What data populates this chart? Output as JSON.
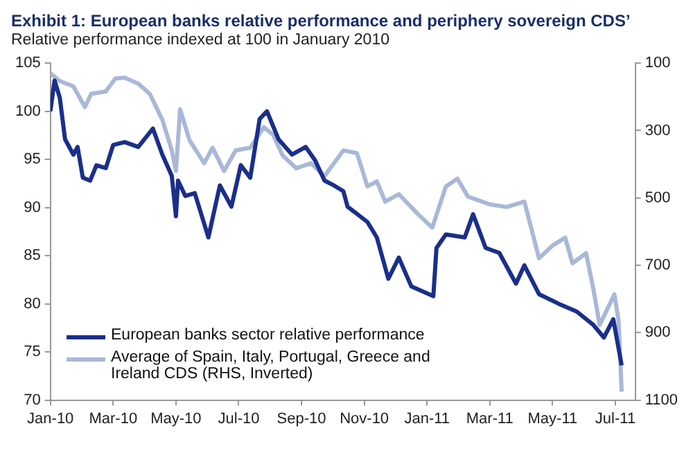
{
  "chart_data": {
    "type": "line",
    "title": "Exhibit 1: European banks relative performance and periphery sovereign CDS’",
    "subtitle": "Relative performance indexed at 100 in January 2010",
    "xlim": [
      "2010-01-01",
      "2011-07-20"
    ],
    "xticks": [
      {
        "value": "2010-01",
        "label": "Jan-10"
      },
      {
        "value": "2010-03",
        "label": "Mar-10"
      },
      {
        "value": "2010-05",
        "label": "May-10"
      },
      {
        "value": "2010-07",
        "label": "Jul-10"
      },
      {
        "value": "2010-09",
        "label": "Sep-10"
      },
      {
        "value": "2010-11",
        "label": "Nov-10"
      },
      {
        "value": "2011-01",
        "label": "Jan-11"
      },
      {
        "value": "2011-03",
        "label": "Mar-11"
      },
      {
        "value": "2011-05",
        "label": "May-11"
      },
      {
        "value": "2011-07",
        "label": "Jul-11"
      }
    ],
    "ylim": [
      70,
      105
    ],
    "yticks": [
      70,
      75,
      80,
      85,
      90,
      95,
      100,
      105
    ],
    "y2lim": [
      1100,
      100
    ],
    "y2ticks": [
      100,
      300,
      500,
      700,
      900,
      1100
    ],
    "legend": "bottom left",
    "marker": "none",
    "line_style": "solid",
    "series": [
      {
        "name": "European banks sector relative performance",
        "color": "#1a2f8a",
        "x": [
          "2010-01-01",
          "2010-01-05",
          "2010-01-10",
          "2010-01-15",
          "2010-01-23",
          "2010-01-27",
          "2010-02-02",
          "2010-02-09",
          "2010-02-15",
          "2010-02-24",
          "2010-03-01",
          "2010-03-12",
          "2010-03-25",
          "2010-04-09",
          "2010-04-18",
          "2010-04-27",
          "2010-05-01",
          "2010-05-03",
          "2010-05-10",
          "2010-05-19",
          "2010-06-02",
          "2010-06-13",
          "2010-06-24",
          "2010-07-03",
          "2010-07-12",
          "2010-07-21",
          "2010-07-28",
          "2010-08-09",
          "2010-08-22",
          "2010-09-05",
          "2010-09-14",
          "2010-09-23",
          "2010-10-02",
          "2010-10-11",
          "2010-10-15",
          "2010-11-04",
          "2010-11-13",
          "2010-11-24",
          "2010-12-04",
          "2010-12-16",
          "2011-01-07",
          "2011-01-10",
          "2011-01-19",
          "2011-02-07",
          "2011-02-15",
          "2011-02-27",
          "2011-03-10",
          "2011-03-26",
          "2011-04-04",
          "2011-04-18",
          "2011-05-07",
          "2011-05-24",
          "2011-06-10",
          "2011-06-20",
          "2011-06-29",
          "2011-07-07"
        ],
        "values": [
          100,
          103.2,
          101.4,
          97.1,
          95.5,
          96.3,
          93.1,
          92.8,
          94.4,
          94.1,
          96.5,
          96.8,
          96.3,
          98.2,
          95.5,
          93.3,
          89.1,
          92.8,
          91.2,
          91.5,
          86.9,
          92.3,
          90.1,
          94.4,
          93.1,
          99.2,
          100,
          97.1,
          95.5,
          96.3,
          94.9,
          92.8,
          92.3,
          91.7,
          90.1,
          88.5,
          86.9,
          82.6,
          84.8,
          81.8,
          80.8,
          85.8,
          87.2,
          86.9,
          89.3,
          85.8,
          85.3,
          82.1,
          84.0,
          81.0,
          80.0,
          79.2,
          77.8,
          76.5,
          78.4,
          73.6
        ]
      },
      {
        "name": "Average of Spain, Italy, Portugal, Greece and Ireland CDS (RHS, Inverted)",
        "color": "#a9b8d8",
        "axis": "y2",
        "x": [
          "2010-01-01",
          "2010-01-10",
          "2010-01-23",
          "2010-02-04",
          "2010-02-10",
          "2010-02-24",
          "2010-03-03",
          "2010-03-12",
          "2010-03-25",
          "2010-04-06",
          "2010-04-18",
          "2010-04-27",
          "2010-05-01",
          "2010-05-05",
          "2010-05-14",
          "2010-05-28",
          "2010-06-06",
          "2010-06-17",
          "2010-06-28",
          "2010-07-12",
          "2010-07-25",
          "2010-08-04",
          "2010-08-13",
          "2010-08-26",
          "2010-09-10",
          "2010-09-23",
          "2010-10-02",
          "2010-10-11",
          "2010-10-24",
          "2010-11-04",
          "2010-11-13",
          "2010-11-21",
          "2010-12-04",
          "2010-12-23",
          "2011-01-06",
          "2011-01-19",
          "2011-01-30",
          "2011-02-10",
          "2011-03-01",
          "2011-03-17",
          "2011-04-04",
          "2011-04-18",
          "2011-05-01",
          "2011-05-13",
          "2011-05-20",
          "2011-06-03",
          "2011-06-10",
          "2011-06-16",
          "2011-06-23",
          "2011-06-30",
          "2011-07-04",
          "2011-07-07"
        ],
        "values": [
          130,
          153,
          169,
          230,
          191,
          184,
          146,
          143,
          161,
          191,
          268,
          359,
          420,
          237,
          329,
          397,
          351,
          420,
          359,
          351,
          290,
          313,
          374,
          412,
          397,
          435,
          397,
          359,
          367,
          466,
          451,
          511,
          489,
          550,
          588,
          466,
          443,
          496,
          519,
          527,
          511,
          679,
          641,
          618,
          694,
          664,
          771,
          877,
          832,
          786,
          862,
          1075
        ]
      }
    ]
  }
}
